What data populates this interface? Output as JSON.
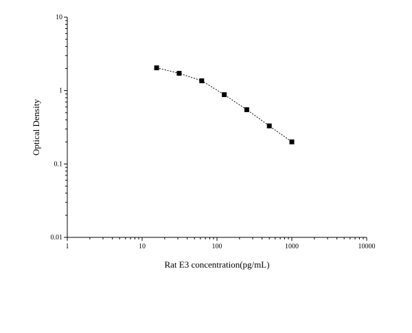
{
  "chart_data": {
    "type": "scatter",
    "title": "",
    "xlabel": "Rat E3 concentration(pg/mL)",
    "ylabel": "Optical Density",
    "x_scale": "log",
    "y_scale": "log",
    "xlim": [
      1,
      10000
    ],
    "ylim": [
      0.01,
      10
    ],
    "x_ticks": [
      1,
      10,
      100,
      1000,
      10000
    ],
    "y_ticks": [
      0.01,
      0.1,
      1,
      10
    ],
    "x_tick_labels": [
      "1",
      "10",
      "100",
      "1000",
      "10000"
    ],
    "y_tick_labels": [
      "0.01",
      "0.1",
      "1",
      "10"
    ],
    "grid": false,
    "series": [
      {
        "x": [
          15.6,
          31.25,
          62.5,
          125,
          250,
          500,
          1000
        ],
        "y": [
          2.04,
          1.72,
          1.36,
          0.88,
          0.55,
          0.33,
          0.2
        ],
        "marker": "square",
        "line_style": "dotted",
        "color": "#000000"
      }
    ]
  }
}
